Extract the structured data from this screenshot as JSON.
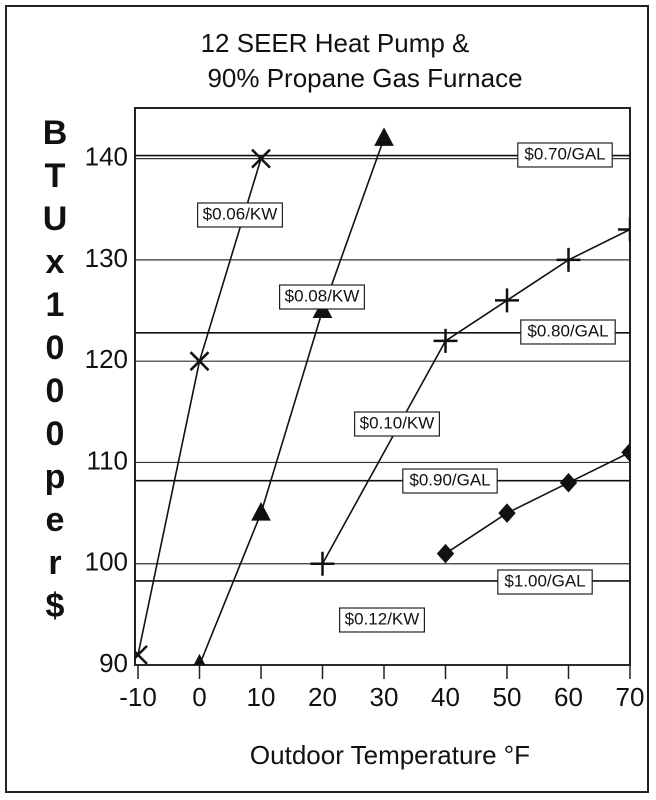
{
  "chart_data": {
    "type": "line",
    "title": [
      "12 SEER Heat Pump &",
      "90% Propane Gas Furnace"
    ],
    "x_label": "Outdoor  Temperature  °F",
    "y_label": "BTU x 1000 per $",
    "xlim": [
      -10,
      70
    ],
    "ylim": [
      90,
      145
    ],
    "xticks": [
      -10,
      0,
      10,
      20,
      30,
      40,
      50,
      60,
      70
    ],
    "yticks": [
      90,
      100,
      110,
      120,
      130,
      140
    ],
    "grid": true,
    "series": [
      {
        "name": "$0.06/KW",
        "marker": "x",
        "color": "#111",
        "x": [
          -10,
          0,
          10
        ],
        "values": [
          91,
          120,
          140
        ]
      },
      {
        "name": "$0.08/KW",
        "marker": "triangle",
        "color": "#111",
        "x": [
          0,
          10,
          20,
          30
        ],
        "values": [
          90,
          105,
          125,
          142
        ]
      },
      {
        "name": "$0.10/KW",
        "marker": "plus",
        "color": "#111",
        "x": [
          20,
          40,
          50,
          60,
          70
        ],
        "values": [
          100,
          122,
          126,
          130,
          133
        ]
      },
      {
        "name": "$0.12/KW",
        "marker": "diamond",
        "color": "#111",
        "x": [
          40,
          50,
          60,
          70
        ],
        "values": [
          101,
          105,
          108,
          111
        ]
      }
    ],
    "reference_lines": [
      {
        "name": "$0.70/GAL",
        "value": 140.3
      },
      {
        "name": "$0.80/GAL",
        "value": 122.8
      },
      {
        "name": "$0.90/GAL",
        "value": 108.2
      },
      {
        "name": "$1.00/GAL",
        "value": 98.3
      }
    ]
  }
}
